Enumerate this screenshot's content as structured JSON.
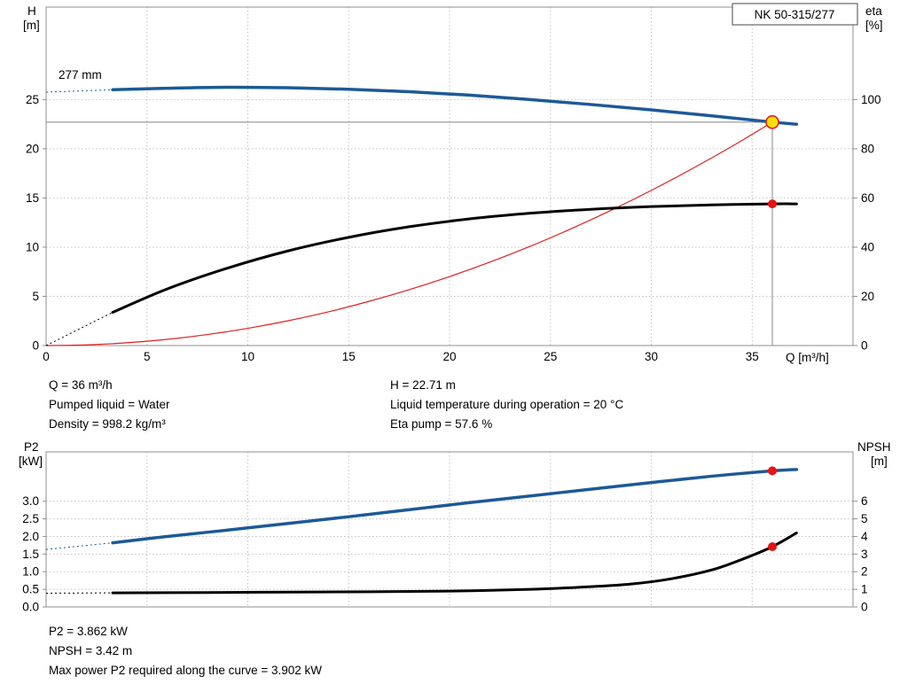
{
  "colors": {
    "curve_blue": "#1c5a96",
    "curve_black": "#000000",
    "curve_red": "#e02020",
    "marker_red": "#e81313",
    "marker_yellow": "#ffdf00"
  },
  "chart_data": [
    {
      "type": "line",
      "title": "NK 50-315/277",
      "curve_label": "277 mm",
      "x_axis": {
        "label": "Q [m³/h]",
        "min": 0,
        "max": 40,
        "ticks": [
          0,
          5,
          10,
          15,
          20,
          25,
          30,
          35
        ],
        "show_labels": true
      },
      "y_left": {
        "name": "H",
        "unit": "[m]",
        "min": 0,
        "max": 34.4,
        "ticks": [
          0,
          5,
          10,
          15,
          20,
          25
        ],
        "decimals": 0
      },
      "y_right": {
        "name": "eta",
        "unit": "[%]",
        "min": 0,
        "max": 137.6,
        "ticks": [
          0,
          20,
          40,
          60,
          80,
          100
        ],
        "decimals": 0
      },
      "series": [
        {
          "name": "system-curve",
          "axis": "left",
          "color_key": "curve_red",
          "width": 1.2,
          "points": [
            [
              0,
              0
            ],
            [
              2,
              0.07
            ],
            [
              4,
              0.28
            ],
            [
              6,
              0.63
            ],
            [
              8,
              1.12
            ],
            [
              10,
              1.75
            ],
            [
              12,
              2.52
            ],
            [
              14,
              3.43
            ],
            [
              16,
              4.49
            ],
            [
              18,
              5.68
            ],
            [
              20,
              7.01
            ],
            [
              22,
              8.48
            ],
            [
              24,
              10.09
            ],
            [
              26,
              11.85
            ],
            [
              28,
              13.74
            ],
            [
              30,
              15.77
            ],
            [
              32,
              17.94
            ],
            [
              34,
              20.25
            ],
            [
              36,
              22.71
            ]
          ]
        },
        {
          "name": "efficiency-curve",
          "axis": "right",
          "color_key": "curve_black",
          "width": 3,
          "lead": [
            [
              0,
              0
            ],
            [
              3.3,
              13.5
            ]
          ],
          "points": [
            [
              3.3,
              13.5
            ],
            [
              6,
              23
            ],
            [
              9,
              31.5
            ],
            [
              12,
              38.5
            ],
            [
              15,
              44
            ],
            [
              18,
              48.3
            ],
            [
              21,
              51.5
            ],
            [
              24,
              53.8
            ],
            [
              27,
              55.4
            ],
            [
              30,
              56.5
            ],
            [
              33,
              57.2
            ],
            [
              36,
              57.6
            ],
            [
              37.2,
              57.6
            ]
          ]
        },
        {
          "name": "pump-curve",
          "axis": "left",
          "color_key": "curve_blue",
          "width": 3.5,
          "lead": [
            [
              0,
              25.75
            ],
            [
              3.3,
              26.0
            ]
          ],
          "points": [
            [
              3.3,
              26.0
            ],
            [
              6,
              26.15
            ],
            [
              9,
              26.25
            ],
            [
              12,
              26.2
            ],
            [
              15,
              26.05
            ],
            [
              18,
              25.8
            ],
            [
              21,
              25.45
            ],
            [
              24,
              25.0
            ],
            [
              27,
              24.5
            ],
            [
              30,
              23.95
            ],
            [
              33,
              23.35
            ],
            [
              36,
              22.71
            ],
            [
              37.2,
              22.5
            ]
          ]
        }
      ],
      "markers": [
        {
          "name": "efficiency-point",
          "x": 36,
          "y": 57.6,
          "axis": "right",
          "r": 5,
          "fill_key": "marker_red"
        },
        {
          "name": "duty-point",
          "x": 36,
          "y": 22.71,
          "axis": "left",
          "r": 7,
          "fill_key": "marker_yellow",
          "stroke_key": "curve_red"
        }
      ],
      "crosshair": {
        "x": 36,
        "y": 22.71
      }
    },
    {
      "type": "line",
      "x_axis": {
        "label": "",
        "min": 0,
        "max": 40,
        "ticks": [
          0,
          5,
          10,
          15,
          20,
          25,
          30,
          35
        ],
        "show_labels": false
      },
      "y_left": {
        "name": "P2",
        "unit": "[kW]",
        "min": 0,
        "max": 4.4,
        "ticks": [
          0,
          0.5,
          1,
          1.5,
          2,
          2.5,
          3
        ],
        "decimals": 1
      },
      "y_right": {
        "name": "NPSH",
        "unit": "[m]",
        "min": 0,
        "max": 8.8,
        "ticks": [
          0,
          1,
          2,
          3,
          4,
          5,
          6
        ],
        "decimals": 0
      },
      "series": [
        {
          "name": "p2-curve",
          "axis": "left",
          "color_key": "curve_blue",
          "width": 3.5,
          "lead": [
            [
              0,
              1.63
            ],
            [
              3.3,
              1.82
            ]
          ],
          "points": [
            [
              3.3,
              1.82
            ],
            [
              6,
              2.0
            ],
            [
              9,
              2.18
            ],
            [
              12,
              2.37
            ],
            [
              15,
              2.56
            ],
            [
              18,
              2.76
            ],
            [
              21,
              2.96
            ],
            [
              24,
              3.15
            ],
            [
              27,
              3.34
            ],
            [
              30,
              3.53
            ],
            [
              33,
              3.71
            ],
            [
              36,
              3.862
            ],
            [
              37.2,
              3.9
            ]
          ]
        },
        {
          "name": "npsh-curve",
          "axis": "right",
          "color_key": "curve_black",
          "width": 3,
          "lead": [
            [
              0,
              0.78
            ],
            [
              3.3,
              0.8
            ]
          ],
          "points": [
            [
              3.3,
              0.8
            ],
            [
              8,
              0.82
            ],
            [
              12,
              0.84
            ],
            [
              16,
              0.86
            ],
            [
              20,
              0.9
            ],
            [
              24,
              1.0
            ],
            [
              27,
              1.15
            ],
            [
              29,
              1.3
            ],
            [
              31,
              1.6
            ],
            [
              33,
              2.1
            ],
            [
              34.5,
              2.7
            ],
            [
              36,
              3.42
            ],
            [
              37.2,
              4.2
            ]
          ]
        }
      ],
      "markers": [
        {
          "name": "p2-point",
          "x": 36,
          "y": 3.862,
          "axis": "left",
          "r": 5,
          "fill_key": "marker_red"
        },
        {
          "name": "npsh-point",
          "x": 36,
          "y": 3.42,
          "axis": "right",
          "r": 5,
          "fill_key": "marker_red"
        }
      ]
    }
  ],
  "top_info": {
    "left": [
      "Q = 36 m³/h",
      "Pumped liquid = Water",
      "Density = 998.2 kg/m³"
    ],
    "right": [
      "H = 22.71 m",
      "Liquid temperature during operation = 20 °C",
      "Eta pump = 57.6 %"
    ]
  },
  "bottom_info": [
    "P2 = 3.862 kW",
    "NPSH = 3.42 m",
    "Max power P2 required along the curve = 3.902 kW"
  ]
}
